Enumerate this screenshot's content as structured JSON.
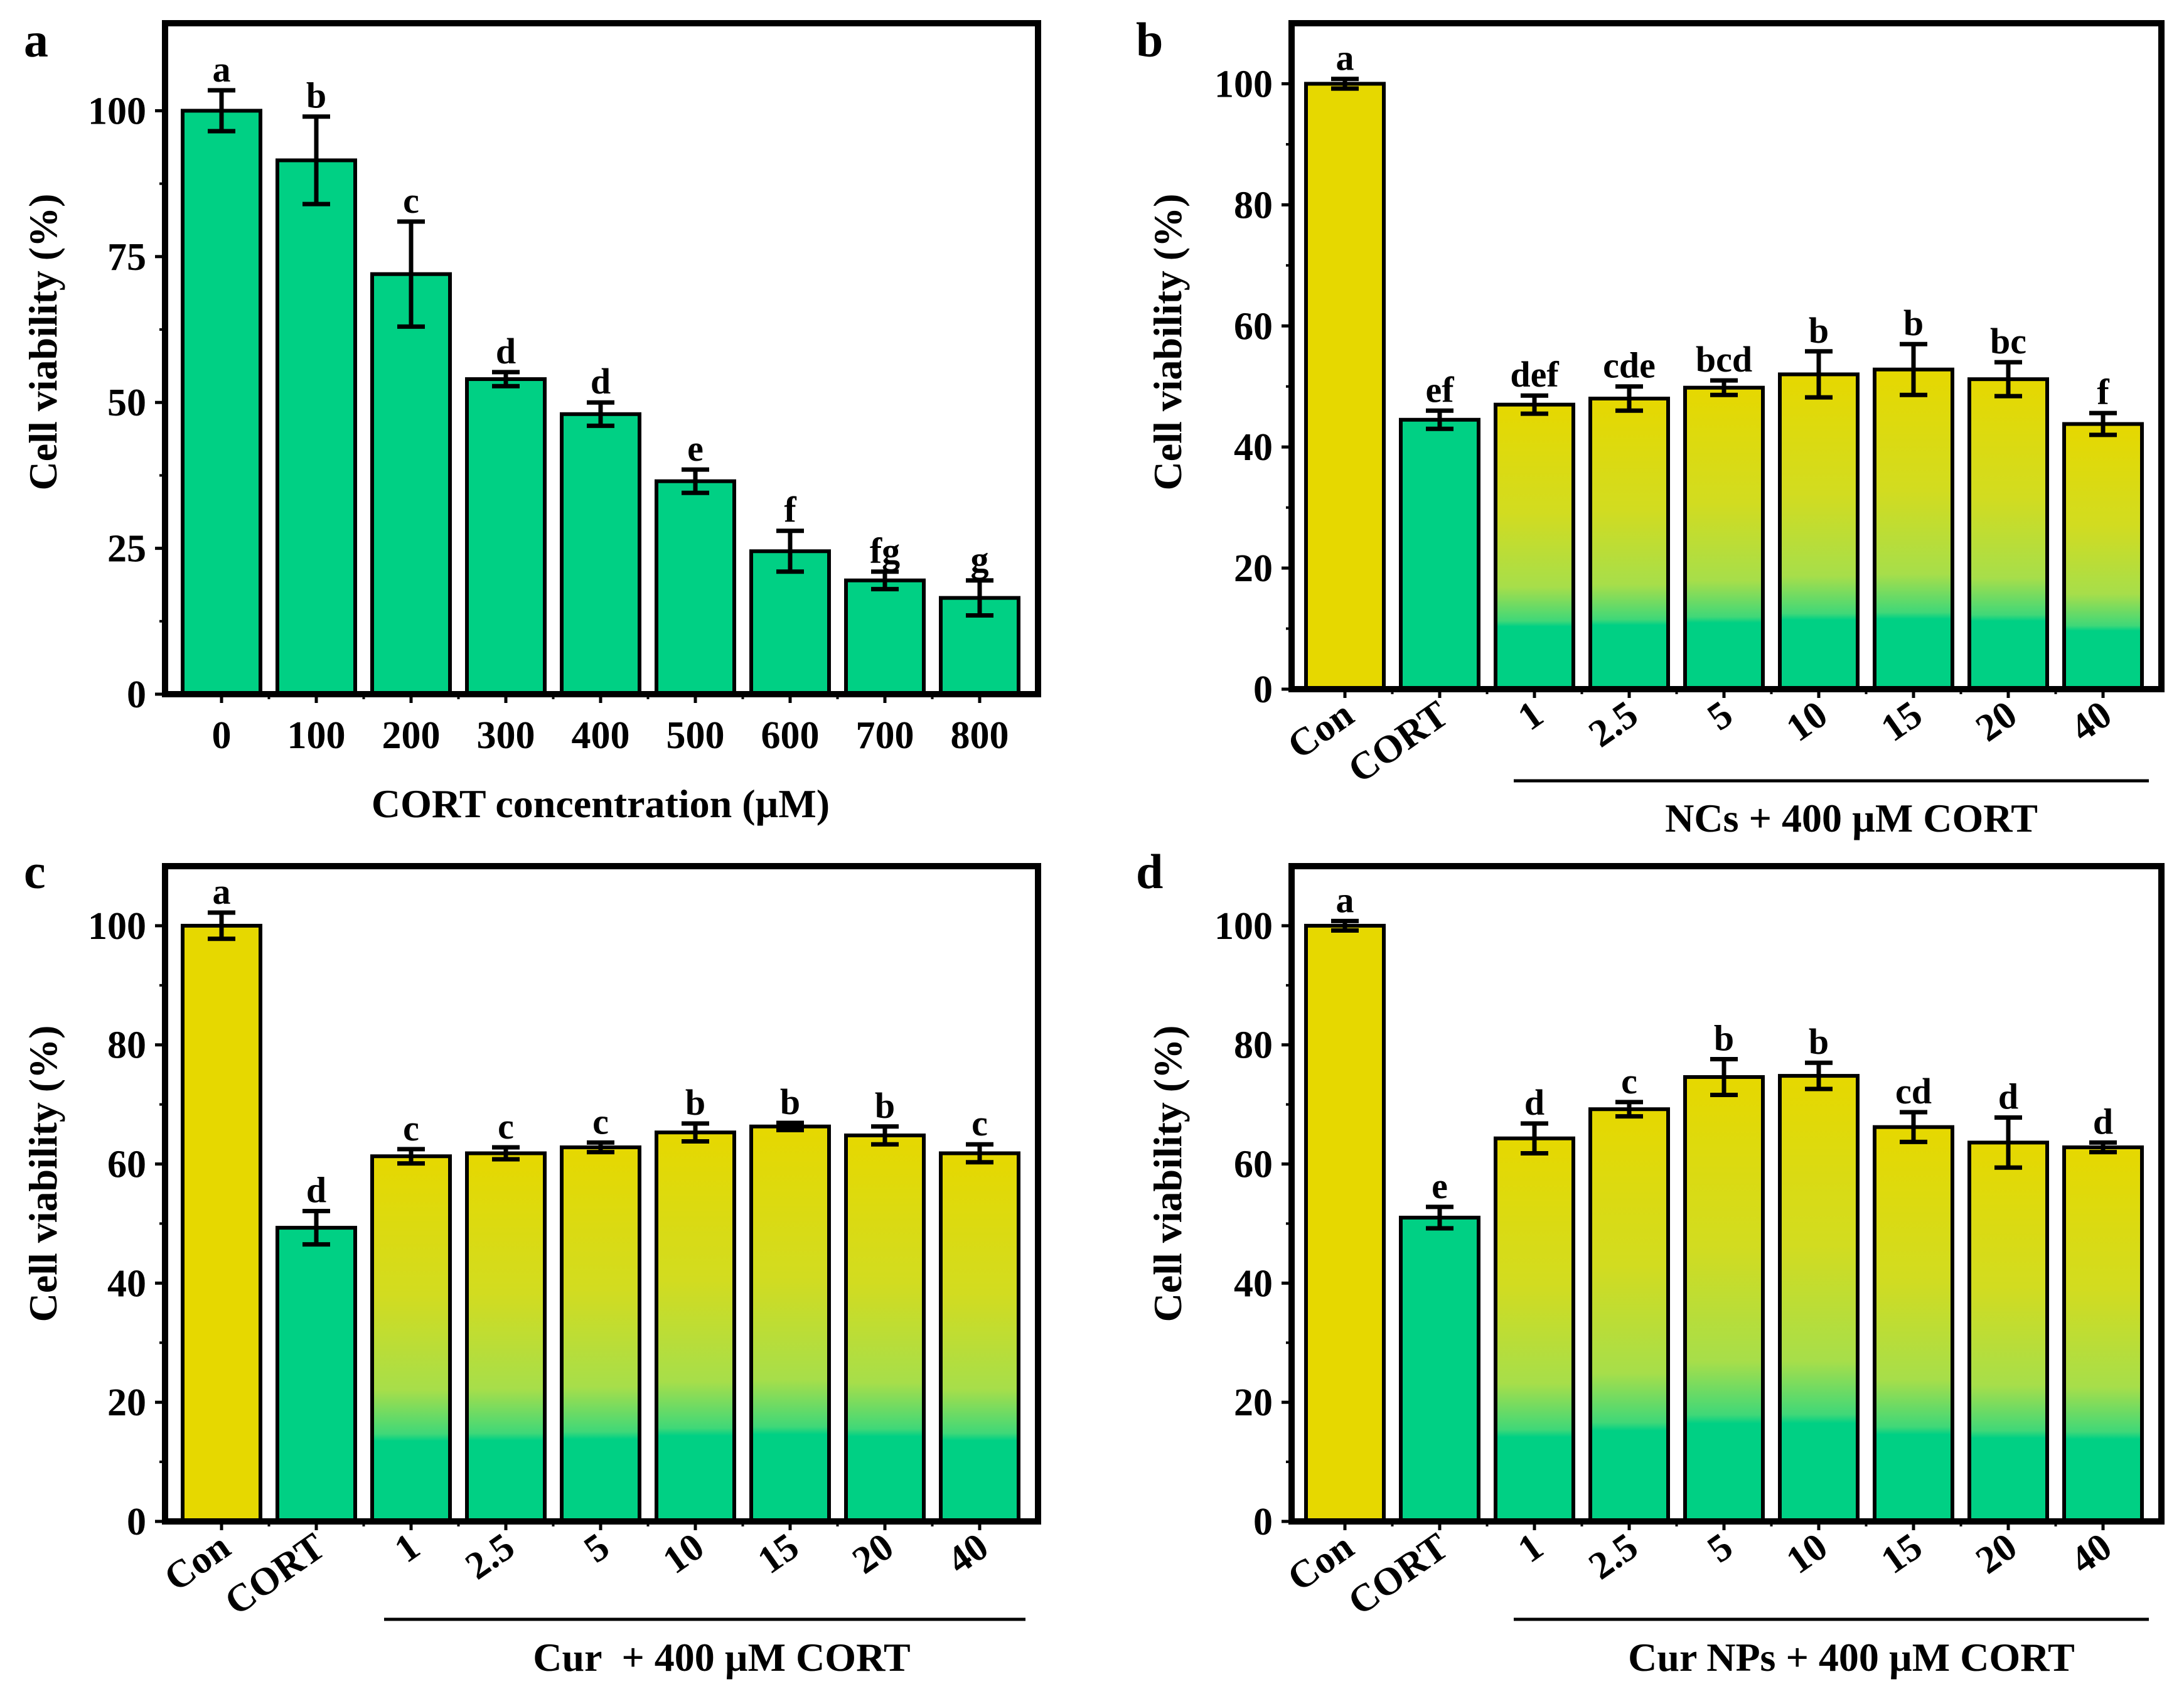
{
  "figure": {
    "colors": {
      "green": "#00d084",
      "yellow": "#e6d800",
      "border": "#000000",
      "background": "#ffffff"
    }
  },
  "chart_data": [
    {
      "panel": "a",
      "type": "bar",
      "title": "",
      "xlabel": "CORT concentration (µM)",
      "ylabel": "Cell viability (%)",
      "ylim": [
        0,
        115
      ],
      "yticks": [
        0,
        25,
        50,
        75,
        100
      ],
      "categories": [
        "0",
        "100",
        "200",
        "300",
        "400",
        "500",
        "600",
        "700",
        "800"
      ],
      "values": [
        100,
        91.5,
        72,
        54,
        48,
        36.5,
        24.5,
        19.5,
        16.5
      ],
      "errors": [
        3.5,
        7.5,
        9,
        1.2,
        2,
        2,
        3.5,
        1.5,
        3
      ],
      "letters": [
        "a",
        "b",
        "c",
        "d",
        "d",
        "e",
        "f",
        "fg",
        "g"
      ],
      "fills": [
        "green",
        "green",
        "green",
        "green",
        "green",
        "green",
        "green",
        "green",
        "green"
      ],
      "group_label": "",
      "rotated_ticks": false
    },
    {
      "panel": "b",
      "type": "bar",
      "title": "",
      "xlabel": "",
      "ylabel": "Cell viability (%)",
      "ylim": [
        0,
        110
      ],
      "yticks": [
        0,
        20,
        40,
        60,
        80,
        100
      ],
      "categories": [
        "Con",
        "CORT",
        "1",
        "2.5",
        "5",
        "10",
        "15",
        "20",
        "40"
      ],
      "values": [
        100,
        44.5,
        47,
        48,
        49.8,
        52,
        52.8,
        51.2,
        43.8
      ],
      "errors": [
        0.8,
        1.5,
        1.5,
        2,
        1.2,
        3.8,
        4.2,
        2.8,
        1.8
      ],
      "letters": [
        "a",
        "ef",
        "def",
        "cde",
        "bcd",
        "b",
        "b",
        "bc",
        "f"
      ],
      "fills": [
        "yellow",
        "green",
        "gradient",
        "gradient",
        "gradient",
        "gradient",
        "gradient",
        "gradient",
        "gradient"
      ],
      "group_label": "NCs + 400 µM CORT",
      "rotated_ticks": true
    },
    {
      "panel": "c",
      "type": "bar",
      "title": "",
      "xlabel": "",
      "ylabel": "Cell viability (%)",
      "ylim": [
        0,
        110
      ],
      "yticks": [
        0,
        20,
        40,
        60,
        80,
        100
      ],
      "categories": [
        "Con",
        "CORT",
        "1",
        "2.5",
        "5",
        "10",
        "15",
        "20",
        "40"
      ],
      "values": [
        100,
        49.3,
        61.3,
        61.8,
        62.8,
        65.3,
        66.3,
        64.8,
        61.8
      ],
      "errors": [
        2.2,
        2.8,
        1.2,
        1,
        0.8,
        1.5,
        0.6,
        1.5,
        1.5
      ],
      "letters": [
        "a",
        "d",
        "c",
        "c",
        "c",
        "b",
        "b",
        "b",
        "c"
      ],
      "fills": [
        "yellow",
        "green",
        "gradient",
        "gradient",
        "gradient",
        "gradient",
        "gradient",
        "gradient",
        "gradient"
      ],
      "group_label": "Cur  + 400 µM CORT",
      "rotated_ticks": true
    },
    {
      "panel": "d",
      "type": "bar",
      "title": "",
      "xlabel": "",
      "ylabel": "Cell viability (%)",
      "ylim": [
        0,
        110
      ],
      "yticks": [
        0,
        20,
        40,
        60,
        80,
        100
      ],
      "categories": [
        "Con",
        "CORT",
        "1",
        "2.5",
        "5",
        "10",
        "15",
        "20",
        "40"
      ],
      "values": [
        100,
        51,
        64.3,
        69.2,
        74.6,
        74.8,
        66.2,
        63.6,
        62.8
      ],
      "errors": [
        0.8,
        1.8,
        2.5,
        1.2,
        3,
        2.2,
        2.5,
        4.2,
        0.8
      ],
      "letters": [
        "a",
        "e",
        "d",
        "c",
        "b",
        "b",
        "cd",
        "d",
        "d"
      ],
      "fills": [
        "yellow",
        "green",
        "gradient",
        "gradient",
        "gradient",
        "gradient",
        "gradient",
        "gradient",
        "gradient"
      ],
      "group_label": "Cur NPs + 400 µM CORT",
      "rotated_ticks": true
    }
  ]
}
